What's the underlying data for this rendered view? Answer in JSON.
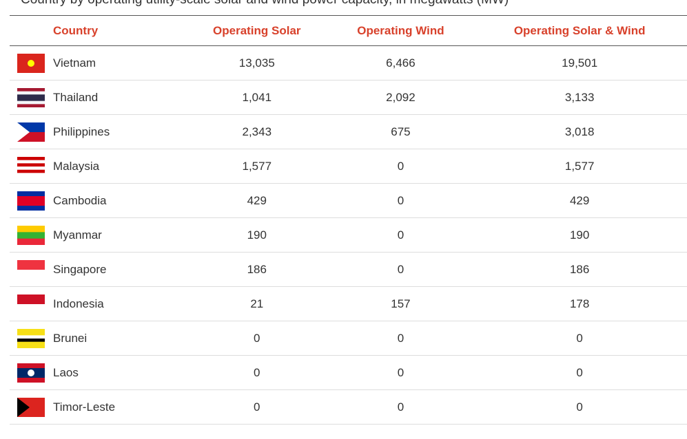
{
  "title": "Country by operating utility-scale solar and wind power capacity, in megawatts (MW)",
  "table": {
    "header": [
      "Country",
      "Operating Solar",
      "Operating Wind",
      "Operating Solar & Wind"
    ],
    "rows": [
      [
        "Vietnam",
        "13,035",
        "6,466",
        "19,501"
      ],
      [
        "Thailand",
        "1,041",
        "2,092",
        "3,133"
      ],
      [
        "Philippines",
        "2,343",
        "675",
        "3,018"
      ],
      [
        "Malaysia",
        "1,577",
        "0",
        "1,577"
      ],
      [
        "Cambodia",
        "429",
        "0",
        "429"
      ],
      [
        "Myanmar",
        "190",
        "0",
        "190"
      ],
      [
        "Singapore",
        "186",
        "0",
        "186"
      ],
      [
        "Indonesia",
        "21",
        "157",
        "178"
      ],
      [
        "Brunei",
        "0",
        "0",
        "0"
      ],
      [
        "Laos",
        "0",
        "0",
        "0"
      ],
      [
        "Timor-Leste",
        "0",
        "0",
        "0"
      ]
    ]
  }
}
